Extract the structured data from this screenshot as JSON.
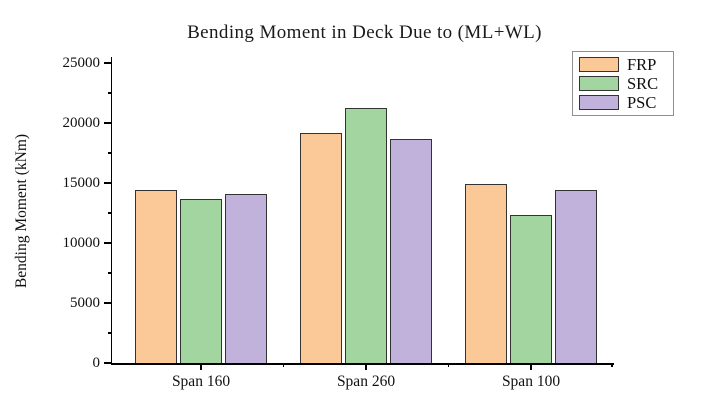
{
  "title": "Bending Moment in Deck Due to (ML+WL)",
  "chart_data": {
    "type": "bar",
    "title": "Bending Moment in Deck Due to (ML+WL)",
    "categories": [
      "Span 160",
      "Span 260",
      "Span 100"
    ],
    "series": [
      {
        "name": "FRP",
        "color": "#fbc997",
        "values": [
          14400,
          19150,
          14900
        ]
      },
      {
        "name": "SRC",
        "color": "#a3d5a0",
        "values": [
          13700,
          21250,
          12300
        ]
      },
      {
        "name": "PSC",
        "color": "#c0b2da",
        "values": [
          14080,
          18650,
          14400
        ]
      }
    ],
    "xlabel": "",
    "ylabel": "Bending Moment (kNm)",
    "ylim": [
      0,
      25000
    ],
    "yticks": [
      0,
      5000,
      10000,
      15000,
      20000,
      25000
    ],
    "minor_ytick_step": 2500,
    "grid": false,
    "legend_position": "top-right",
    "legend_entries": [
      "FRP",
      "SRC",
      "PSC"
    ],
    "bar_edge_color": "#333333",
    "axis_color": "#000000",
    "background_color": "#ffffff"
  }
}
